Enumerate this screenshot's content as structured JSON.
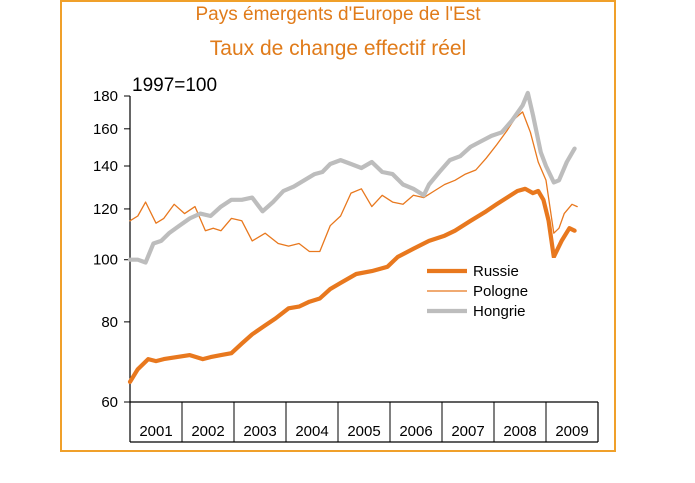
{
  "chart_data": {
    "type": "line",
    "title": "Pays émergents d'Europe de l'Est",
    "subtitle": "Taux de change effectif réel",
    "note": "1997=100",
    "yscale": "log",
    "ylim": [
      60,
      180
    ],
    "yticks": [
      60,
      80,
      100,
      120,
      140,
      160,
      180
    ],
    "xlim": [
      2000.85,
      2009.85
    ],
    "x_labels": [
      "2001",
      "2002",
      "2003",
      "2004",
      "2005",
      "2006",
      "2007",
      "2008",
      "2009"
    ],
    "grid": false,
    "legend_position": "right-middle",
    "series": [
      {
        "name": "Russie",
        "color": "#e8781e",
        "x": [
          2000.85,
          2001.0,
          2001.2,
          2001.35,
          2001.5,
          2001.75,
          2002.0,
          2002.25,
          2002.4,
          2002.6,
          2002.8,
          2003.0,
          2003.2,
          2003.45,
          2003.65,
          2003.9,
          2004.1,
          2004.3,
          2004.5,
          2004.7,
          2004.9,
          2005.2,
          2005.5,
          2005.8,
          2006.0,
          2006.3,
          2006.6,
          2006.9,
          2007.1,
          2007.4,
          2007.7,
          2007.9,
          2008.1,
          2008.3,
          2008.45,
          2008.6,
          2008.7,
          2008.8,
          2008.9,
          2009.0,
          2009.15,
          2009.3,
          2009.4
        ],
        "values": [
          64.5,
          67.5,
          70,
          69.5,
          70,
          70.5,
          71,
          70,
          70.5,
          71,
          71.5,
          74,
          76.5,
          79,
          81,
          84,
          84.5,
          86,
          87,
          90,
          92,
          95,
          96,
          97.5,
          101,
          104,
          107,
          109,
          111,
          115,
          119,
          122,
          125,
          128,
          129,
          127,
          128,
          124,
          115,
          101,
          107,
          112,
          111
        ]
      },
      {
        "name": "Pologne",
        "color": "#e8781e",
        "x": [
          2000.85,
          2001.0,
          2001.15,
          2001.35,
          2001.5,
          2001.7,
          2001.9,
          2002.1,
          2002.3,
          2002.45,
          2002.6,
          2002.8,
          2003.0,
          2003.2,
          2003.45,
          2003.7,
          2003.9,
          2004.1,
          2004.3,
          2004.5,
          2004.7,
          2004.9,
          2005.1,
          2005.3,
          2005.5,
          2005.7,
          2005.9,
          2006.1,
          2006.3,
          2006.5,
          2006.7,
          2006.9,
          2007.1,
          2007.3,
          2007.5,
          2007.7,
          2007.9,
          2008.1,
          2008.25,
          2008.4,
          2008.55,
          2008.7,
          2008.85,
          2009.0,
          2009.1,
          2009.2,
          2009.35,
          2009.45
        ],
        "values": [
          115,
          117,
          123,
          114,
          116,
          122,
          118,
          121,
          111,
          112,
          111,
          116,
          115,
          107,
          110,
          106,
          105,
          106,
          103,
          103,
          113,
          117,
          127,
          129,
          121,
          126,
          123,
          122,
          126,
          125,
          128,
          131,
          133,
          136,
          138,
          144,
          151,
          159,
          166,
          170,
          158,
          142,
          133,
          110,
          112,
          118,
          122,
          121
        ]
      },
      {
        "name": "Hongrie",
        "color": "#bdbdbd",
        "x": [
          2000.85,
          2001.0,
          2001.15,
          2001.3,
          2001.45,
          2001.6,
          2001.8,
          2002.0,
          2002.2,
          2002.4,
          2002.6,
          2002.8,
          2003.0,
          2003.2,
          2003.4,
          2003.6,
          2003.8,
          2004.0,
          2004.2,
          2004.4,
          2004.55,
          2004.7,
          2004.9,
          2005.1,
          2005.3,
          2005.5,
          2005.7,
          2005.9,
          2006.1,
          2006.3,
          2006.5,
          2006.6,
          2006.8,
          2007.0,
          2007.2,
          2007.4,
          2007.6,
          2007.8,
          2008.0,
          2008.2,
          2008.4,
          2008.5,
          2008.6,
          2008.75,
          2008.85,
          2009.0,
          2009.1,
          2009.25,
          2009.4
        ],
        "values": [
          100,
          100,
          99,
          106,
          107,
          110,
          113,
          116,
          118,
          117,
          121,
          124,
          124,
          125,
          119,
          123,
          128,
          130,
          133,
          136,
          137,
          141,
          143,
          141,
          139,
          142,
          137,
          136,
          131,
          129,
          126,
          131,
          137,
          143,
          145,
          150,
          153,
          156,
          158,
          165,
          174,
          182,
          168,
          147,
          140,
          132,
          133,
          142,
          149
        ]
      }
    ]
  }
}
